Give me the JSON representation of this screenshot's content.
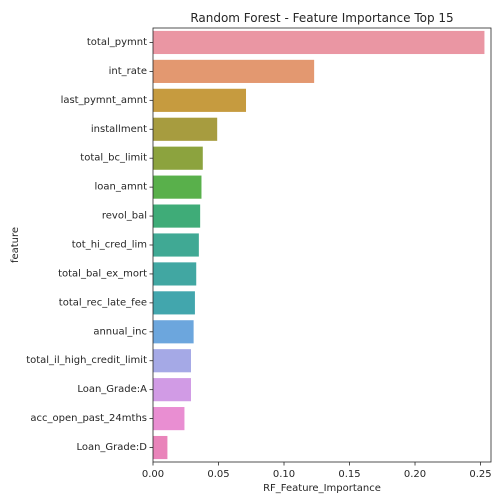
{
  "chart_data": {
    "type": "bar",
    "orientation": "horizontal",
    "title": "Random Forest - Feature Importance Top 15",
    "xlabel": "RF_Feature_Importance",
    "ylabel": "feature",
    "xlim": [
      0,
      0.258
    ],
    "xticks": [
      "0.00",
      "0.05",
      "0.10",
      "0.15",
      "0.20",
      "0.25"
    ],
    "grid": false,
    "categories": [
      "total_pymnt",
      "int_rate",
      "last_pymnt_amnt",
      "installment",
      "total_bc_limit",
      "loan_amnt",
      "revol_bal",
      "tot_hi_cred_lim",
      "total_bal_ex_mort",
      "total_rec_late_fee",
      "annual_inc",
      "total_il_high_credit_limit",
      "Loan_Grade:A",
      "acc_open_past_24mths",
      "Loan_Grade:D"
    ],
    "values": [
      0.253,
      0.123,
      0.071,
      0.049,
      0.038,
      0.037,
      0.036,
      0.035,
      0.033,
      0.032,
      0.031,
      0.029,
      0.029,
      0.024,
      0.011
    ],
    "colors": [
      "#ea96a3",
      "#e39870",
      "#c69b3f",
      "#a79c3f",
      "#8ca33e",
      "#59b04b",
      "#3fac78",
      "#40a994",
      "#41a7a2",
      "#42a6ad",
      "#6ca6dd",
      "#a5a9e6",
      "#d19be5",
      "#e98ed2",
      "#e984ba"
    ]
  }
}
